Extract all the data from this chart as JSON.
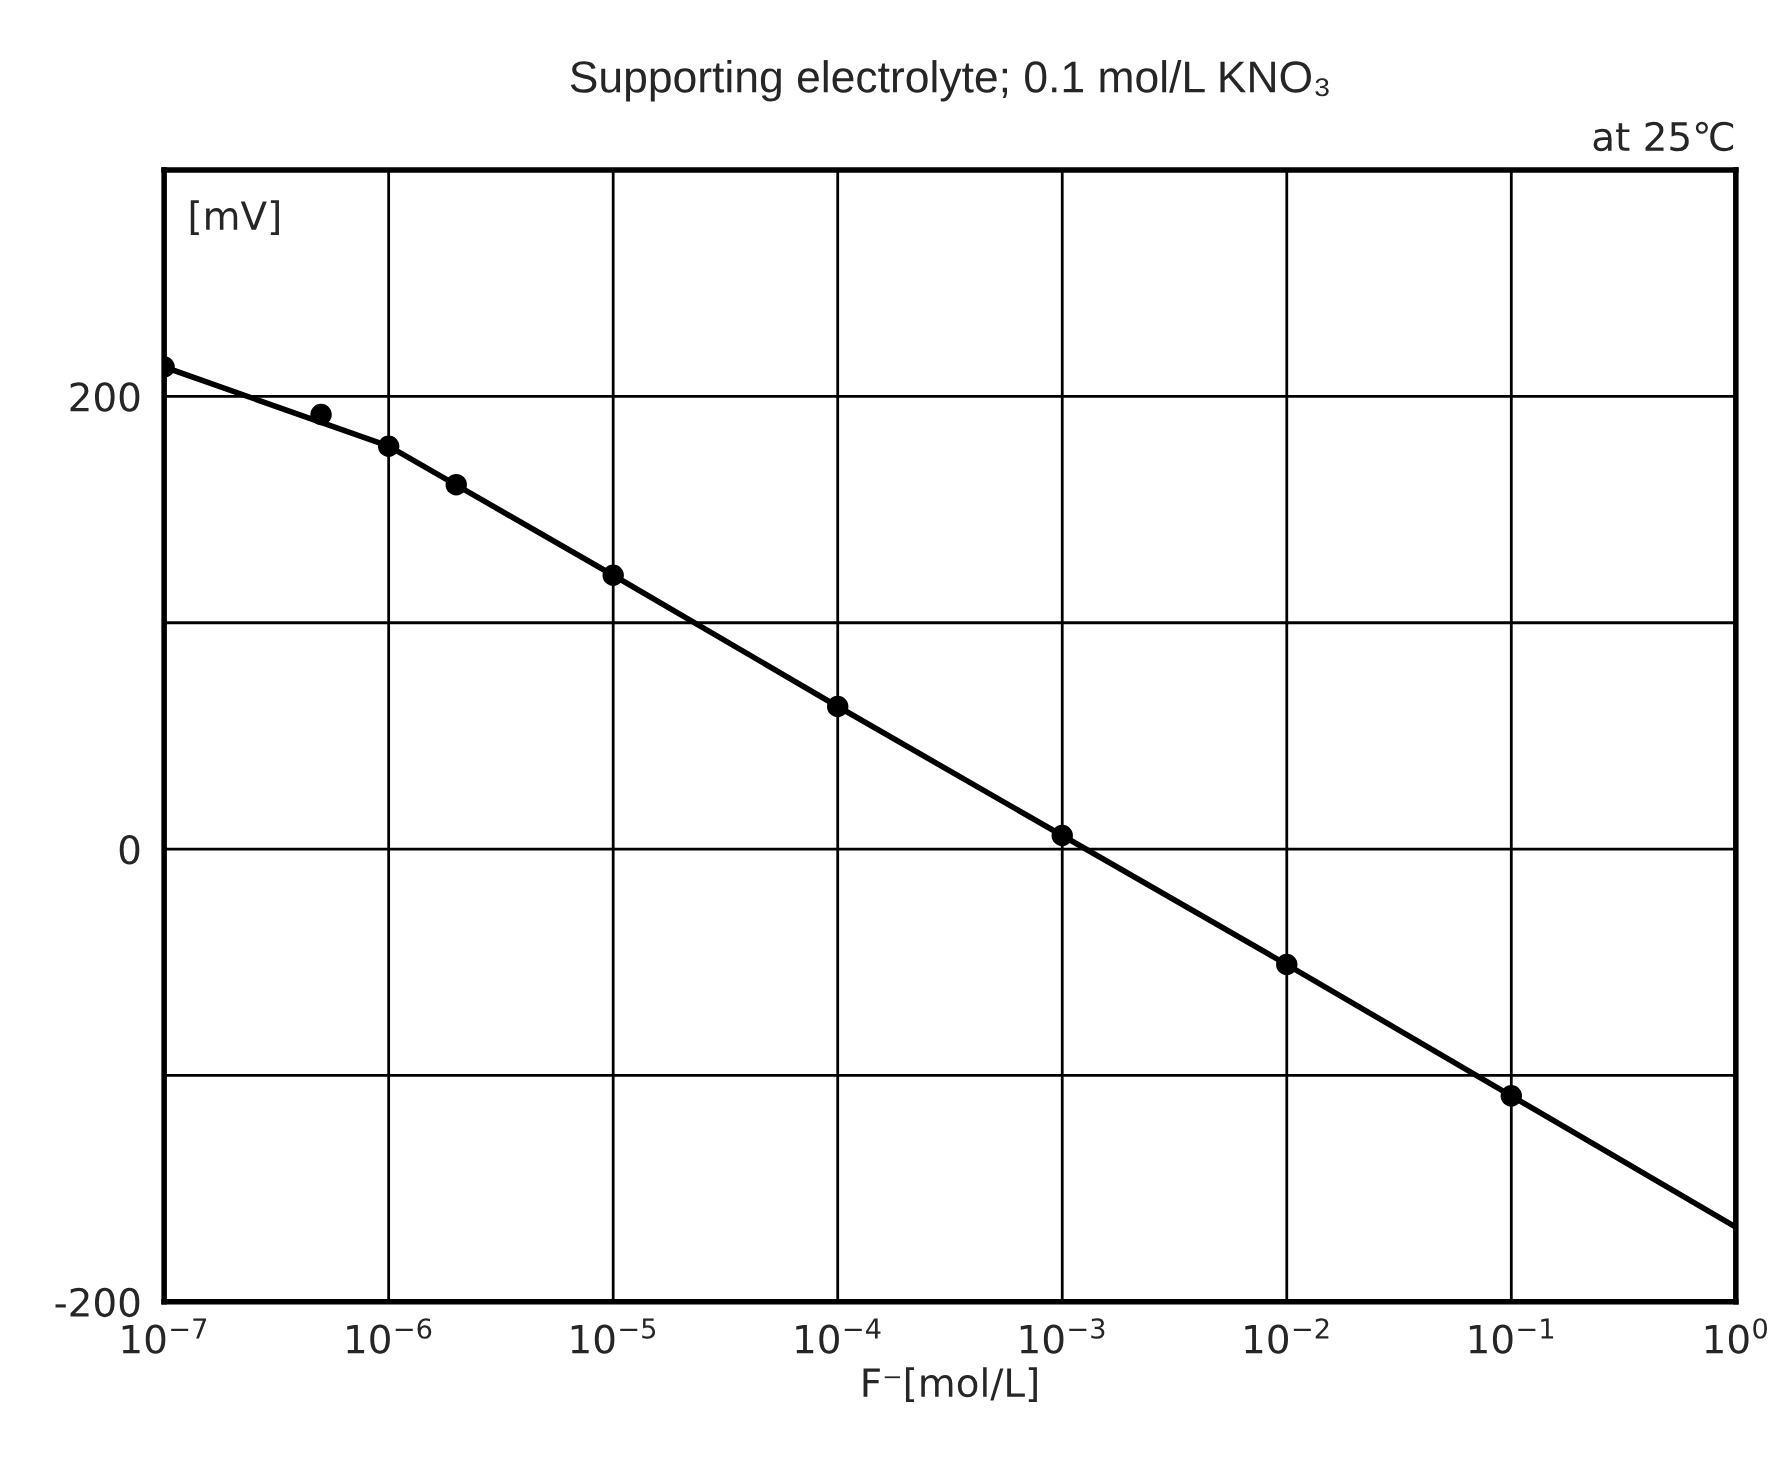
{
  "chart_data": {
    "type": "line",
    "title": "Supporting electrolyte; 0.1 mol/L KNO₃",
    "xlabel": "F⁻[mol/L]",
    "ylabel": "[mV]",
    "annotations": [
      "at 25℃"
    ],
    "log": "x",
    "grid": true,
    "xlim": [
      1e-07,
      1
    ],
    "ylim": [
      -200,
      300
    ],
    "xticks": [
      {
        "value": 1e-07,
        "label": "10$^{−7}$"
      },
      {
        "value": 1e-06,
        "label": "10$^{−6}$"
      },
      {
        "value": 1e-05,
        "label": "10$^{−5}$"
      },
      {
        "value": 0.0001,
        "label": "10$^{−4}$"
      },
      {
        "value": 0.001,
        "label": "10$^{−3}$"
      },
      {
        "value": 0.01,
        "label": "10$^{−2}$"
      },
      {
        "value": 0.1,
        "label": "10$^{−1}$"
      },
      {
        "value": 1,
        "label": "10$^{0}$"
      }
    ],
    "yticks": [
      -200,
      {
        "value": -100,
        "label": null
      },
      0,
      {
        "value": 100,
        "label": null
      },
      200
    ],
    "series": [
      {
        "color": "#000000",
        "marker": "none",
        "x": [
          1e-07,
          1e-06,
          1e-05,
          0.0001,
          0.001,
          0.01,
          0.1,
          1
        ],
        "values": [
          213,
          178,
          121,
          63,
          6,
          -51,
          -109,
          -167
        ]
      },
      {
        "type": "scatter",
        "color": "#000000",
        "marker": "circle",
        "x": [
          1e-07,
          5e-07,
          1e-06,
          2e-06,
          1e-05,
          0.0001,
          0.001,
          0.01,
          0.1
        ],
        "values": [
          213,
          192,
          178,
          161,
          121,
          63,
          6,
          -51,
          -109
        ]
      }
    ]
  }
}
